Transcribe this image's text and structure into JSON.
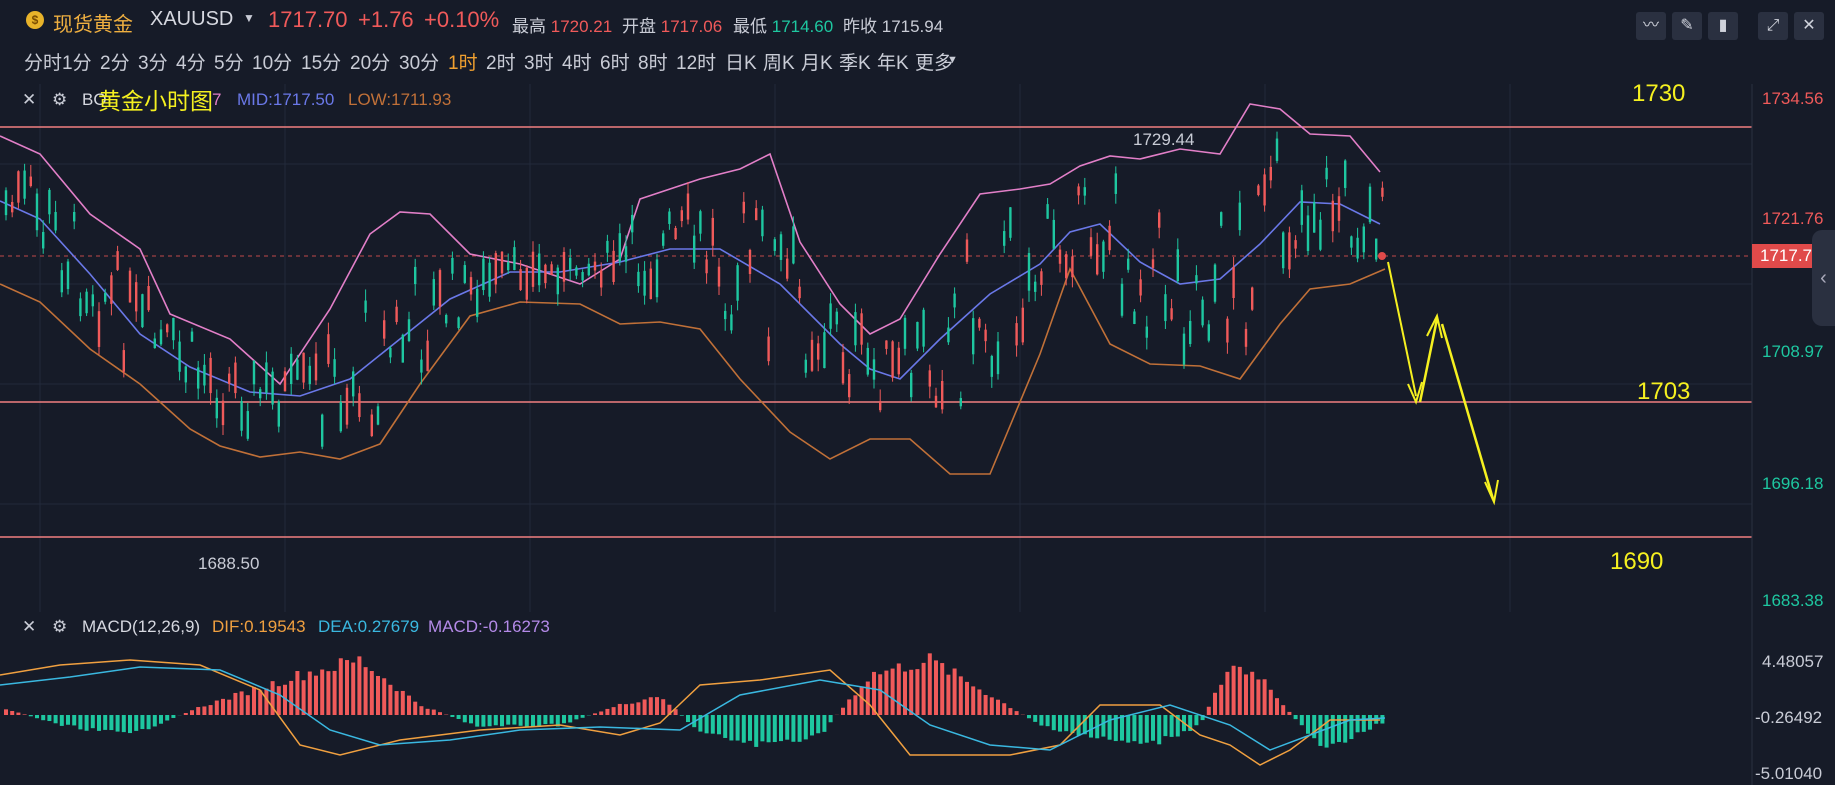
{
  "header": {
    "logo_text": "$",
    "symbol_cn": "现货黄金",
    "symbol_code": "XAUUSD",
    "price": "1717.70",
    "change": "+1.76",
    "change_pct": "+0.10%",
    "stats": [
      {
        "label": "最高",
        "value": "1720.21",
        "color": "#f05a5a"
      },
      {
        "label": "开盘",
        "value": "1717.06",
        "color": "#f05a5a"
      },
      {
        "label": "最低",
        "value": "1714.60",
        "color": "#1ec7a0"
      },
      {
        "label": "昨收",
        "value": "1715.94",
        "color": "#c9ccd6"
      }
    ],
    "tools": [
      "line-chart-icon",
      "pencil-icon",
      "candlestick-icon",
      "expand-icon",
      "close-icon"
    ]
  },
  "timeframes": [
    "分时",
    "1分",
    "2分",
    "3分",
    "4分",
    "5分",
    "10分",
    "15分",
    "20分",
    "30分",
    "1时",
    "2时",
    "3时",
    "4时",
    "6时",
    "8时",
    "12时",
    "日K",
    "周K",
    "月K",
    "季K",
    "年K",
    "更多"
  ],
  "active_timeframe": "1时",
  "main_panel": {
    "indicator": "BO",
    "overlay_title": "黄金小时图",
    "boll_tail": "7",
    "mid_label": "MID:1717.50",
    "low_label": "LOW:1711.93",
    "y_labels": [
      {
        "text": "1734.56",
        "color": "#f05a5a"
      },
      {
        "text": "1721.76",
        "color": "#f05a5a"
      },
      {
        "text": "1708.97",
        "color": "#1ec7a0"
      },
      {
        "text": "1696.18",
        "color": "#1ec7a0"
      },
      {
        "text": "1683.38",
        "color": "#1ec7a0"
      }
    ],
    "current_price_tag": "1717.70",
    "high_marker": "1729.44",
    "low_marker": "1688.50",
    "annotations": {
      "level_1730": "1730",
      "level_1703": "1703",
      "level_1690": "1690"
    }
  },
  "macd_panel": {
    "label": "MACD(12,26,9)",
    "dif": "DIF:0.19543",
    "dea": "DEA:0.27679",
    "macd": "MACD:-0.16273",
    "y_labels": [
      "4.48057",
      "-0.26492",
      "-5.01040"
    ]
  },
  "colors": {
    "up": "#f05a5a",
    "down": "#1ec7a0",
    "upper_band": "#e27fc8",
    "mid_band": "#6a78e8",
    "lower_band": "#c07038",
    "dif": "#f0a040",
    "dea": "#3ab8e0",
    "annotation": "#f5f020"
  }
}
